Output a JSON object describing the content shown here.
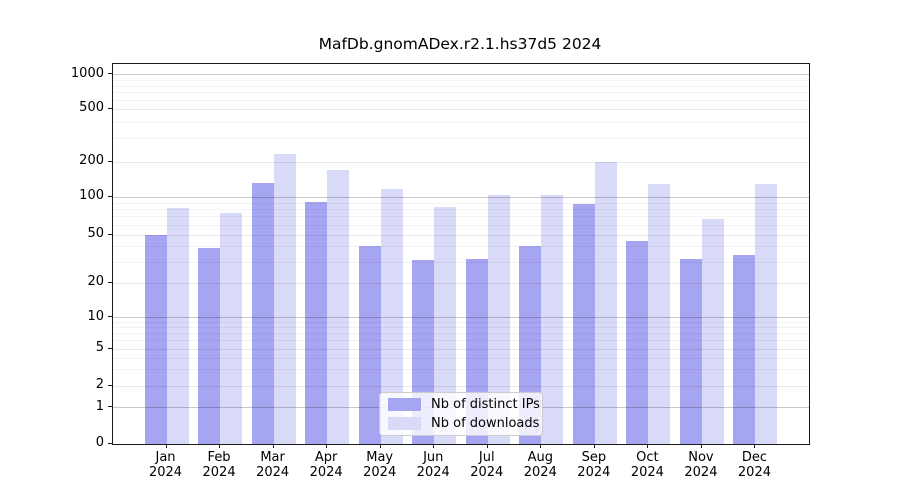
{
  "chart_data": {
    "type": "bar",
    "title": "MafDb.gnomADex.r2.1.hs37d5 2024",
    "categories": [
      "Jan 2024",
      "Feb 2024",
      "Mar 2024",
      "Apr 2024",
      "May 2024",
      "Jun 2024",
      "Jul 2024",
      "Aug 2024",
      "Sep 2024",
      "Oct 2024",
      "Nov 2024",
      "Dec 2024"
    ],
    "series": [
      {
        "name": "Nb of distinct IPs",
        "color": "#a5a5f2",
        "values": [
          50,
          39,
          132,
          92,
          41,
          31,
          32,
          41,
          88,
          45,
          32,
          34
        ]
      },
      {
        "name": "Nb of downloads",
        "color": "#d9d9f8",
        "values": [
          82,
          75,
          230,
          170,
          118,
          84,
          104,
          105,
          200,
          130,
          67,
          129
        ]
      }
    ],
    "xlabel": "",
    "ylabel": "",
    "yscale": "log-like (compressed below 10, linear 0-1)",
    "ytick_labels": [
      "0",
      "1",
      "2",
      "5",
      "10",
      "20",
      "50",
      "100",
      "200",
      "500",
      "1000"
    ],
    "ytick_values": [
      0,
      1,
      2,
      5,
      10,
      20,
      50,
      100,
      200,
      500,
      1000
    ],
    "ylim": [
      0,
      1000
    ],
    "grid": true,
    "legend_position": "inside lower-center"
  },
  "legend": {
    "items": [
      {
        "label": "Nb of distinct IPs",
        "color": "#a5a5f2"
      },
      {
        "label": "Nb of downloads",
        "color": "#d9d9f8"
      }
    ]
  }
}
